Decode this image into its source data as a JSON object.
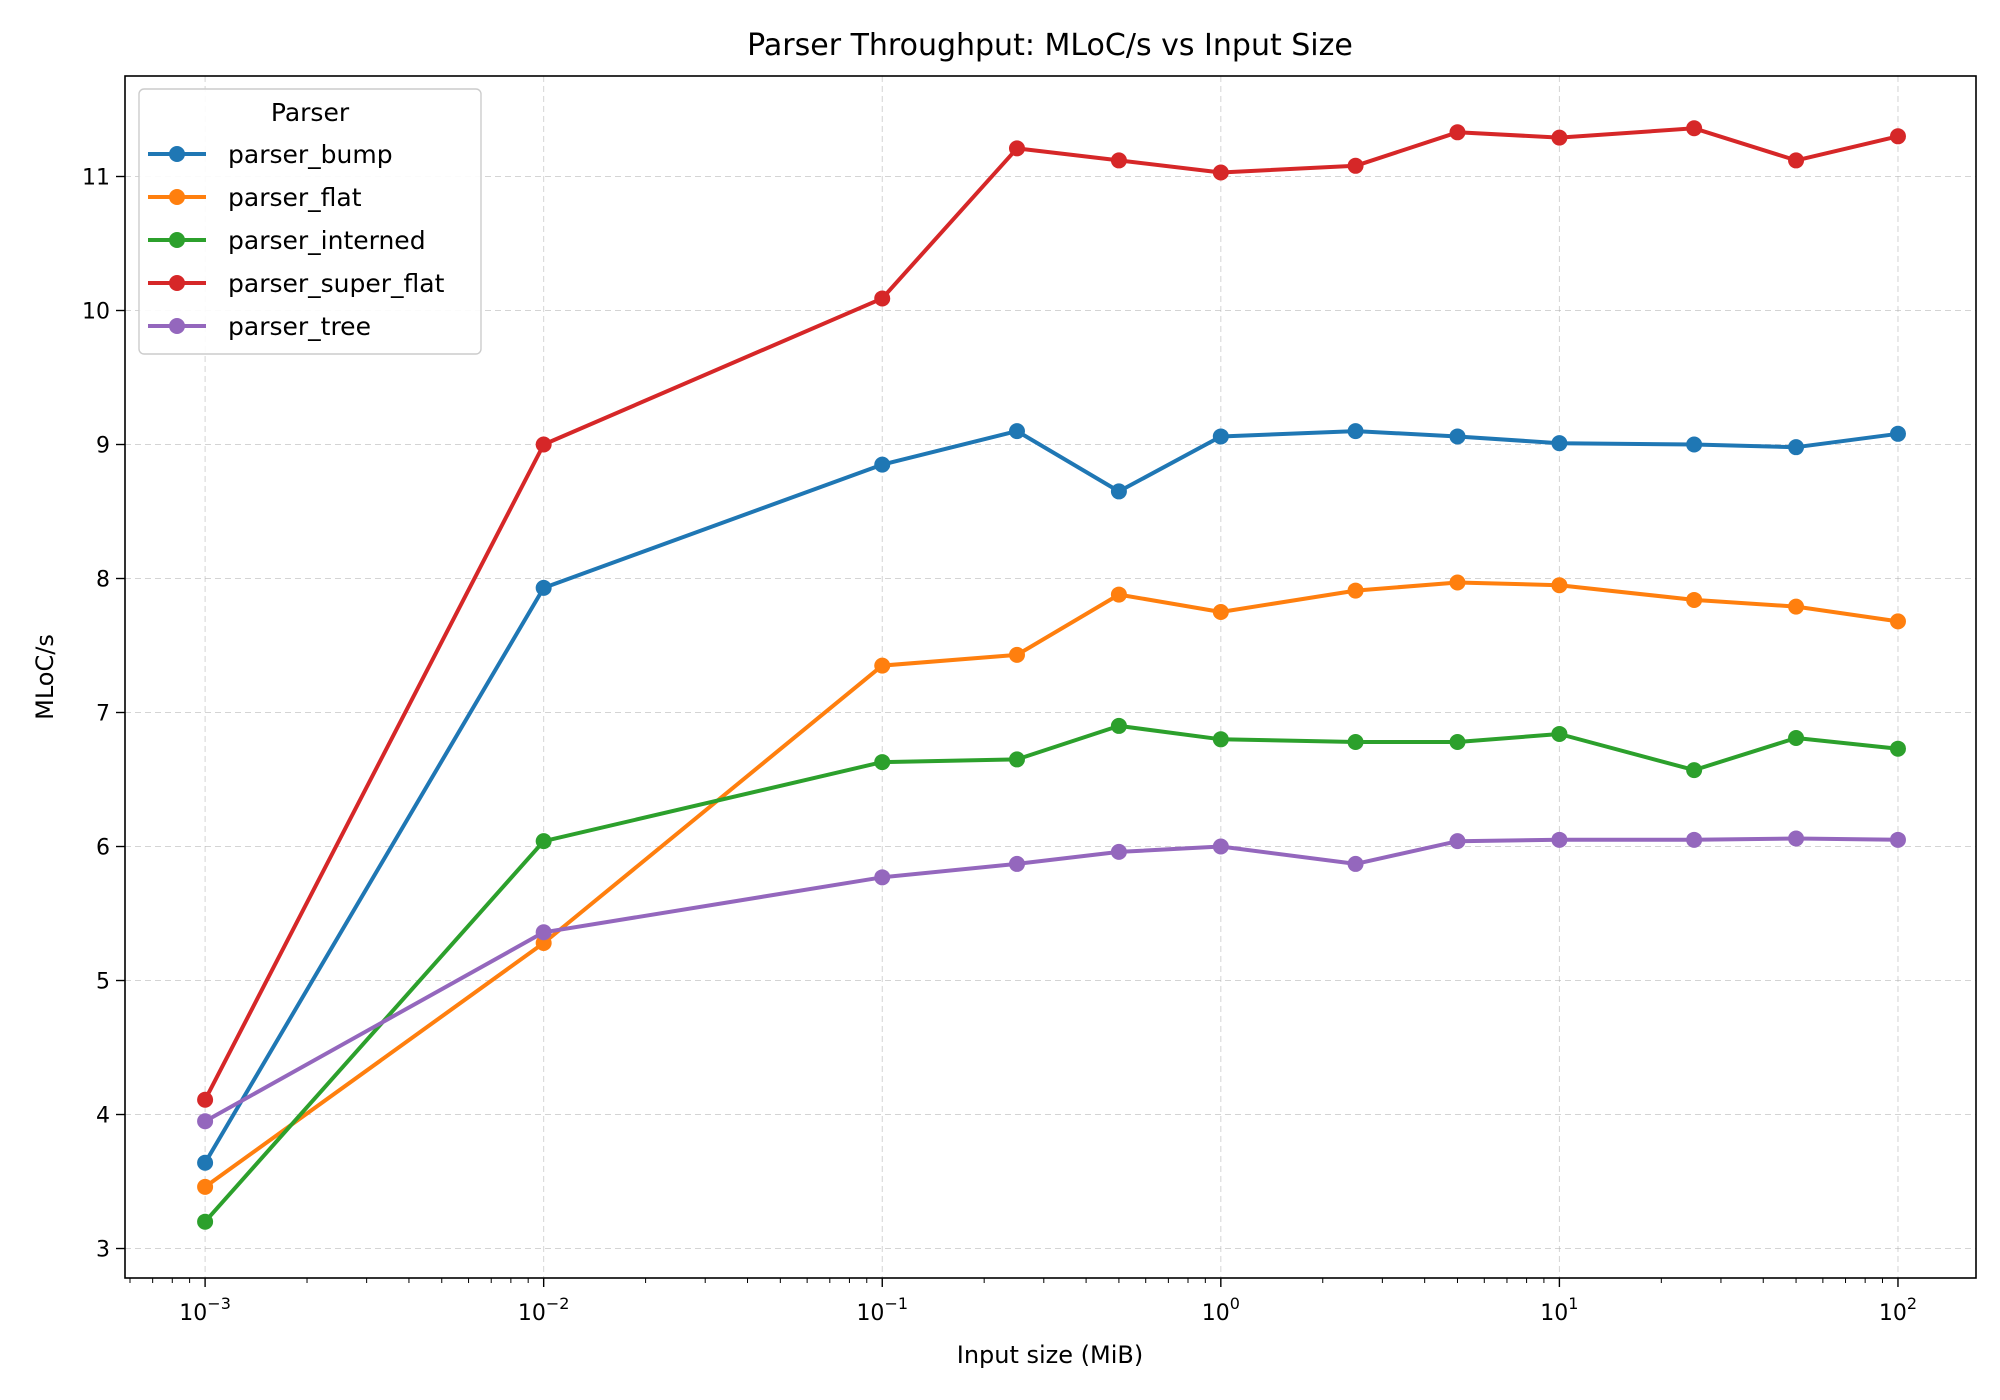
{
  "chart_data": {
    "type": "line",
    "title": "Parser Throughput: MLoC/s vs Input Size",
    "xlabel": "Input size (MiB)",
    "ylabel": "MLoC/s",
    "xscale": "log",
    "xlim": [
      0.00058,
      170
    ],
    "ylim": [
      2.78,
      11.75
    ],
    "x_ticks": [
      {
        "value": 0.001,
        "base": "10",
        "exp": "−3"
      },
      {
        "value": 0.01,
        "base": "10",
        "exp": "−2"
      },
      {
        "value": 0.1,
        "base": "10",
        "exp": "−1"
      },
      {
        "value": 1,
        "base": "10",
        "exp": "0"
      },
      {
        "value": 10,
        "base": "10",
        "exp": "1"
      },
      {
        "value": 100,
        "base": "10",
        "exp": "2"
      }
    ],
    "y_ticks": [
      3,
      4,
      5,
      6,
      7,
      8,
      9,
      10,
      11
    ],
    "grid": true,
    "legend": {
      "title": "Parser",
      "placement": "top-left"
    },
    "x": [
      0.001,
      0.01,
      0.1,
      0.25,
      0.5,
      1,
      2.5,
      5,
      10,
      25,
      50,
      100
    ],
    "series": [
      {
        "name": "parser_bump",
        "color": "#1f77b4",
        "values": [
          3.64,
          7.93,
          8.85,
          9.1,
          8.65,
          9.06,
          9.1,
          9.06,
          9.01,
          9.0,
          8.98,
          9.08
        ]
      },
      {
        "name": "parser_flat",
        "color": "#ff7f0e",
        "values": [
          3.46,
          5.28,
          7.35,
          7.43,
          7.88,
          7.75,
          7.91,
          7.97,
          7.95,
          7.84,
          7.79,
          7.68
        ]
      },
      {
        "name": "parser_interned",
        "color": "#2ca02c",
        "values": [
          3.2,
          6.04,
          6.63,
          6.65,
          6.9,
          6.8,
          6.78,
          6.78,
          6.84,
          6.57,
          6.81,
          6.73
        ]
      },
      {
        "name": "parser_super_flat",
        "color": "#d62728",
        "values": [
          4.11,
          9.0,
          10.09,
          11.21,
          11.12,
          11.03,
          11.08,
          11.33,
          11.29,
          11.36,
          11.12,
          11.3
        ]
      },
      {
        "name": "parser_tree",
        "color": "#9467bd",
        "values": [
          3.95,
          5.36,
          5.77,
          5.87,
          5.96,
          6.0,
          5.87,
          6.04,
          6.05,
          6.05,
          6.06,
          6.05
        ]
      }
    ]
  }
}
